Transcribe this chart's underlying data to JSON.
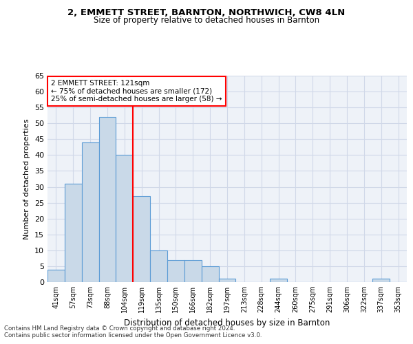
{
  "title1": "2, EMMETT STREET, BARNTON, NORTHWICH, CW8 4LN",
  "title2": "Size of property relative to detached houses in Barnton",
  "xlabel": "Distribution of detached houses by size in Barnton",
  "ylabel": "Number of detached properties",
  "categories": [
    "41sqm",
    "57sqm",
    "73sqm",
    "88sqm",
    "104sqm",
    "119sqm",
    "135sqm",
    "150sqm",
    "166sqm",
    "182sqm",
    "197sqm",
    "213sqm",
    "228sqm",
    "244sqm",
    "260sqm",
    "275sqm",
    "291sqm",
    "306sqm",
    "322sqm",
    "337sqm",
    "353sqm"
  ],
  "values": [
    4,
    31,
    44,
    52,
    40,
    27,
    10,
    7,
    7,
    5,
    1,
    0,
    0,
    1,
    0,
    0,
    0,
    0,
    0,
    1,
    0
  ],
  "bar_color": "#c9d9e8",
  "bar_edgecolor": "#5b9bd5",
  "bar_linewidth": 0.8,
  "redline_x": 4.5,
  "annotation_text": "2 EMMETT STREET: 121sqm\n← 75% of detached houses are smaller (172)\n25% of semi-detached houses are larger (58) →",
  "annotation_box_color": "white",
  "annotation_box_edgecolor": "red",
  "grid_color": "#d0d8e8",
  "ylim": [
    0,
    65
  ],
  "yticks": [
    0,
    5,
    10,
    15,
    20,
    25,
    30,
    35,
    40,
    45,
    50,
    55,
    60,
    65
  ],
  "footnote1": "Contains HM Land Registry data © Crown copyright and database right 2024.",
  "footnote2": "Contains public sector information licensed under the Open Government Licence v3.0.",
  "bg_color": "#eef2f8"
}
